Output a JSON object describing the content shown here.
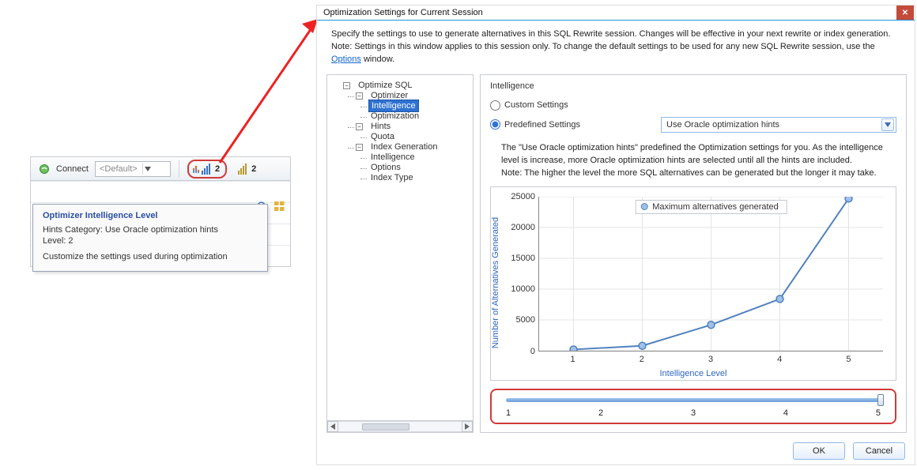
{
  "host": {
    "connect_label": "Connect",
    "dropdown_value": "<Default>",
    "spinner1_value": "2",
    "spinner2_value": "2"
  },
  "tooltip": {
    "title": "Optimizer Intelligence Level",
    "line1": "Hints Category: Use Oracle optimization hints",
    "line2": "Level: 2",
    "line3": "Customize the settings used during optimization"
  },
  "dialog": {
    "title": "Optimization Settings for Current Session",
    "intro_line1": "Specify the settings to use to generate alternatives in this SQL Rewrite session. Changes will be effective in your next rewrite or index generation.",
    "intro_line2a": "Note: Settings in this window applies to this session only. To change the default settings to be used for any new SQL Rewrite session, use the ",
    "intro_link": "Options",
    "intro_line2b": " window.",
    "ok": "OK",
    "cancel": "Cancel"
  },
  "tree": {
    "root": "Optimize SQL",
    "n_optimizer": "Optimizer",
    "n_intelligence": "Intelligence",
    "n_optimization": "Optimization",
    "n_hints": "Hints",
    "n_quota": "Quota",
    "n_indexgen": "Index Generation",
    "n_ig_intelligence": "Intelligence",
    "n_ig_options": "Options",
    "n_ig_indextype": "Index Type"
  },
  "settings": {
    "header": "Intelligence",
    "radio_custom": "Custom Settings",
    "radio_predef": "Predefined Settings",
    "select_value": "Use Oracle optimization hints",
    "desc1": "The \"Use Oracle optimization hints\" predefined the Optimization settings for you. As the intelligence level is increase, more Oracle optimization hints are selected until all the hints are included.",
    "desc2": "Note: The higher the level the more SQL alternatives can be generated but the longer it may take."
  },
  "chart": {
    "type": "line",
    "legend": "Maximum alternatives generated",
    "y_title": "Number of Alternatives Generated",
    "x_title": "Intelligence Level",
    "x_values": [
      1,
      2,
      3,
      4,
      5
    ],
    "y_values": [
      200,
      800,
      4200,
      8400,
      24700
    ],
    "ylim": [
      0,
      25000
    ],
    "ytick_step": 5000,
    "y_ticks": [
      0,
      5000,
      10000,
      15000,
      20000,
      25000
    ],
    "series_color": "#4f81bd",
    "marker_fill": "#a0c0e8",
    "grid_color": "#e3e3e3",
    "title_color": "#2f66c1"
  },
  "slider": {
    "min": 1,
    "max": 5,
    "value": 5,
    "labels": [
      "1",
      "2",
      "3",
      "4",
      "5"
    ]
  }
}
